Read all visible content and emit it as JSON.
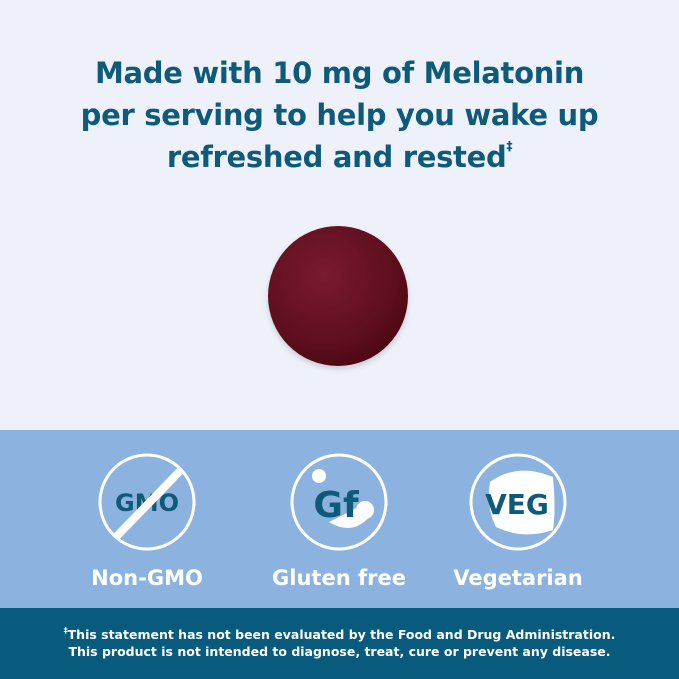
{
  "headline": {
    "line1": "Made with 10 mg of Melatonin",
    "line2": "per serving to help you wake up",
    "line3": "refreshed and rested",
    "mark": "‡"
  },
  "product": {
    "image": "red gummy"
  },
  "badges": [
    {
      "icon": "gmo",
      "icon_text": "GMO",
      "label": "Non-GMO"
    },
    {
      "icon": "gf",
      "icon_text": "Gf",
      "label": "Gluten free"
    },
    {
      "icon": "veg",
      "icon_text": "VEG",
      "label": "Vegetarian"
    }
  ],
  "disclaimer": {
    "mark": "‡",
    "line1": "This statement has not been evaluated by the Food and Drug Administration.",
    "line2": "This product is not intended to diagnose, treat, cure or prevent any disease."
  },
  "colors": {
    "background": "#eef1f9",
    "headline": "#0e5a79",
    "band": "#8cb3e0",
    "footer": "#085b7c"
  }
}
